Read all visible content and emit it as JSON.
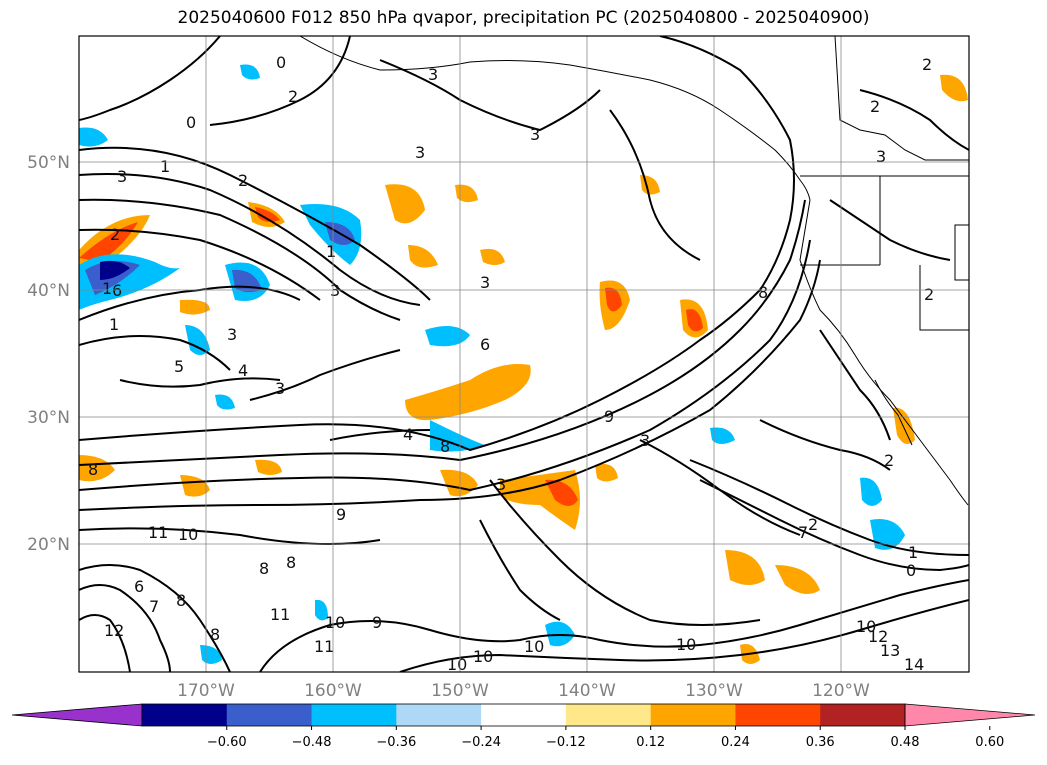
{
  "title": "2025040600 F012 850 hPa qvapor, precipitation PC (2025040800 - 2025040900)",
  "map": {
    "lat_labels": [
      "50°N",
      "40°N",
      "30°N",
      "20°N"
    ],
    "lon_labels": [
      "170°W",
      "160°W",
      "150°W",
      "140°W",
      "130°W",
      "120°W"
    ],
    "contour_labels": [
      "0",
      "0",
      "1",
      "2",
      "3",
      "3",
      "3",
      "3",
      "1",
      "5",
      "4",
      "3",
      "3",
      "1",
      "1",
      "6",
      "4",
      "6",
      "8",
      "3",
      "8",
      "9",
      "11",
      "10",
      "8",
      "8",
      "9",
      "11",
      "12",
      "6",
      "7",
      "8",
      "8",
      "10",
      "11",
      "10",
      "10",
      "10",
      "10",
      "9",
      "10",
      "13",
      "14",
      "12",
      "0",
      "1",
      "3",
      "2",
      "2",
      "3",
      "7",
      "3",
      "8",
      "2",
      "2",
      "3",
      "2",
      "2",
      "2"
    ],
    "gridlines": true
  },
  "colorbar": {
    "ticks": [
      "−0.60",
      "−0.48",
      "−0.36",
      "−0.24",
      "−0.12",
      "0.12",
      "0.24",
      "0.36",
      "0.48",
      "0.60"
    ],
    "colors": [
      "#9932cc",
      "#00008b",
      "#3a5fcd",
      "#00bfff",
      "#add8f6",
      "#ffffff",
      "#ffe88a",
      "#ffa500",
      "#ff4500",
      "#b22222",
      "#ff88aa"
    ]
  }
}
